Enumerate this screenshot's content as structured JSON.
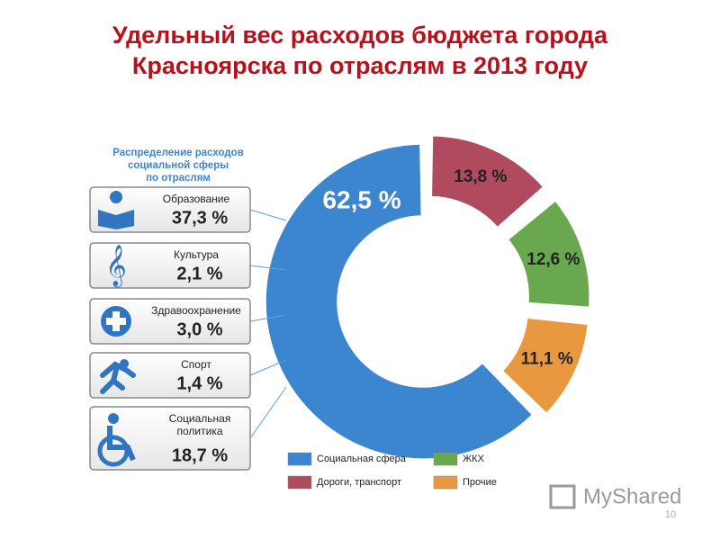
{
  "chart_data": {
    "type": "pie",
    "title": "Удельный вес расходов бюджета города Красноярска по отраслям в 2013 году",
    "categories": [
      "Социальная сфера",
      "Дороги, транспорт",
      "ЖКХ",
      "Прочие"
    ],
    "values": [
      62.5,
      13.8,
      12.6,
      11.1
    ],
    "value_labels": [
      "62,5 %",
      "13,8 %",
      "12,6 %",
      "11,1 %"
    ],
    "colors": [
      "#3b86cf",
      "#b04a5f",
      "#6aa84f",
      "#e8993f"
    ],
    "breakdown": {
      "title": "Распределение расходов социальной сферы по отраслям",
      "categories": [
        "Образование",
        "Культура",
        "Здравоохранение",
        "Спорт",
        "Социальная политика"
      ],
      "values": [
        37.3,
        2.1,
        3.0,
        1.4,
        18.7
      ],
      "value_labels": [
        "37,3 %",
        "2,1 %",
        "3,0 %",
        "1,4 %",
        "18,7 %"
      ]
    }
  },
  "watermark": "MyShared",
  "page_number": "10"
}
